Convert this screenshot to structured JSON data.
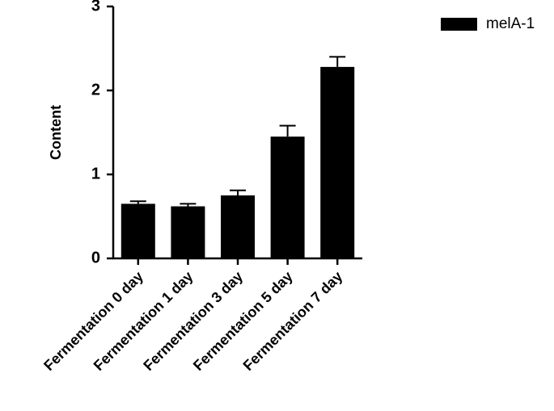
{
  "chart_data": {
    "type": "bar",
    "y_label": "Content",
    "categories": [
      "Fermentation 0 day",
      "Fermentation 1 day",
      "Fermentation 3 day",
      "Fermentation 5 day",
      "Fermentation 7 day"
    ],
    "series": [
      {
        "name": "melA-1",
        "color": "#000000",
        "values": [
          0.65,
          0.62,
          0.75,
          1.45,
          2.28
        ],
        "errors": [
          0.03,
          0.03,
          0.06,
          0.13,
          0.12
        ]
      }
    ],
    "ylim": [
      0,
      3
    ],
    "yticks": [
      0,
      1,
      2,
      3
    ],
    "grid": false,
    "legend": "top-right"
  }
}
